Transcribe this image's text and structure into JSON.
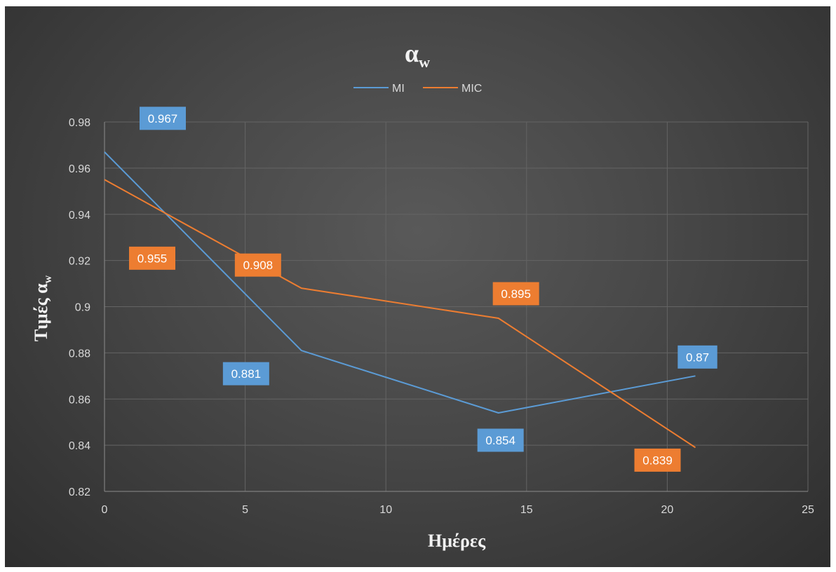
{
  "chart_data": {
    "type": "line",
    "title": "α",
    "title_subscript": "w",
    "xlabel": "Ημέρες",
    "ylabel": "Τιμές α",
    "ylabel_subscript": "w",
    "xlim": [
      0,
      25
    ],
    "ylim": [
      0.82,
      0.98
    ],
    "x_ticks": [
      "0",
      "5",
      "10",
      "15",
      "20",
      "25"
    ],
    "y_ticks": [
      "0.82",
      "0.84",
      "0.86",
      "0.88",
      "0.9",
      "0.92",
      "0.94",
      "0.96",
      "0.98"
    ],
    "grid": true,
    "legend_position": "top",
    "series": [
      {
        "name": "MI",
        "color": "#5b9bd5",
        "x": [
          0,
          7,
          14,
          21
        ],
        "values": [
          0.967,
          0.881,
          0.854,
          0.87
        ],
        "labels": [
          "0.967",
          "0.881",
          "0.854",
          "0.87"
        ]
      },
      {
        "name": "MIC",
        "color": "#ed7d31",
        "x": [
          0,
          7,
          14,
          21
        ],
        "values": [
          0.955,
          0.908,
          0.895,
          0.839
        ],
        "labels": [
          "0.955",
          "0.908",
          "0.895",
          "0.839"
        ]
      }
    ]
  }
}
